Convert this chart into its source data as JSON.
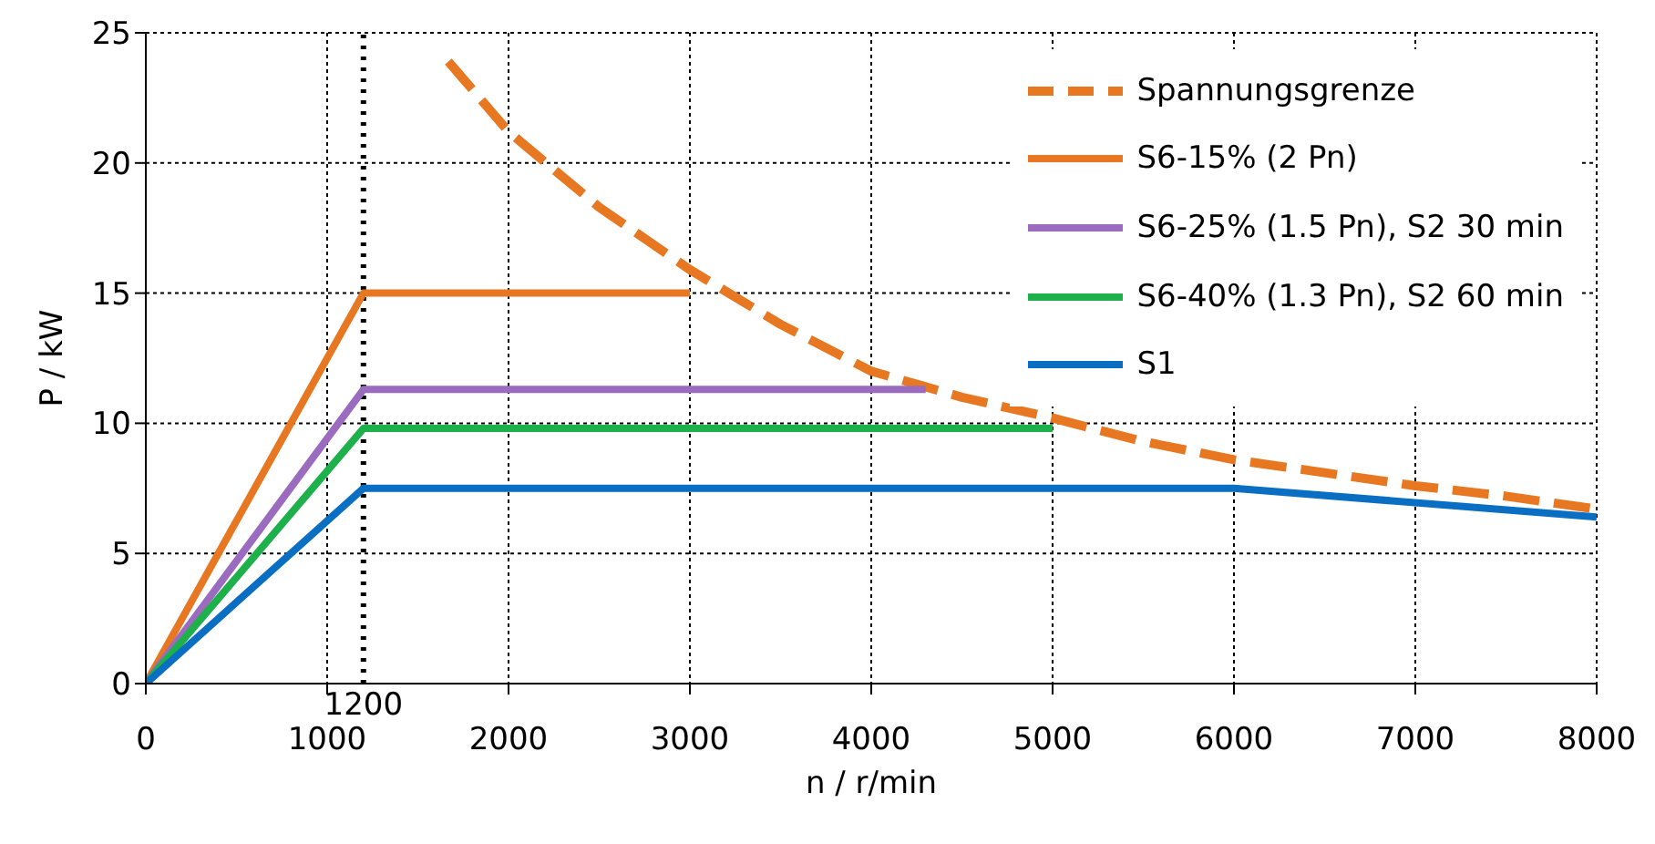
{
  "chart_data": {
    "type": "line",
    "xlabel": "n / r/min",
    "ylabel": "P / kW",
    "xlim": [
      0,
      8000
    ],
    "ylim": [
      0,
      25
    ],
    "xticks": [
      0,
      1000,
      2000,
      3000,
      4000,
      5000,
      6000,
      7000,
      8000
    ],
    "yticks": [
      0,
      5,
      10,
      15,
      20,
      25
    ],
    "grid": true,
    "legend": "top right",
    "marker": "none",
    "ref_lines": [
      {
        "axis": "x",
        "value": 1200,
        "label": "1200",
        "line_style": "dotted",
        "color": "#000000"
      }
    ],
    "series": [
      {
        "name": "Spannungsgrenze",
        "color": "#e87722",
        "line_style": "dashed",
        "x": [
          1668,
          2000,
          2500,
          3000,
          3500,
          4000,
          4500,
          5000,
          5500,
          6000,
          6500,
          7000,
          7500,
          8000
        ],
        "values": [
          23.9,
          21.2,
          18.3,
          15.9,
          13.8,
          12.0,
          11.0,
          10.2,
          9.3,
          8.6,
          8.1,
          7.6,
          7.2,
          6.7
        ]
      },
      {
        "name": "S6-15% (2 Pn)",
        "color": "#e87722",
        "line_style": "solid",
        "x": [
          0,
          1200,
          3000
        ],
        "values": [
          0,
          15,
          15
        ]
      },
      {
        "name": "S6-25% (1.5 Pn), S2 30 min",
        "color": "#9b6bbf",
        "line_style": "solid",
        "x": [
          0,
          1200,
          4300
        ],
        "values": [
          0,
          11.3,
          11.3
        ]
      },
      {
        "name": "S6-40% (1.3 Pn), S2 60 min",
        "color": "#1db04b",
        "line_style": "solid",
        "x": [
          0,
          1200,
          5000
        ],
        "values": [
          0,
          9.8,
          9.8
        ]
      },
      {
        "name": "S1",
        "color": "#0a6fc2",
        "line_style": "solid",
        "x": [
          0,
          1200,
          6000,
          8000
        ],
        "values": [
          0,
          7.5,
          7.5,
          6.4
        ]
      }
    ]
  }
}
